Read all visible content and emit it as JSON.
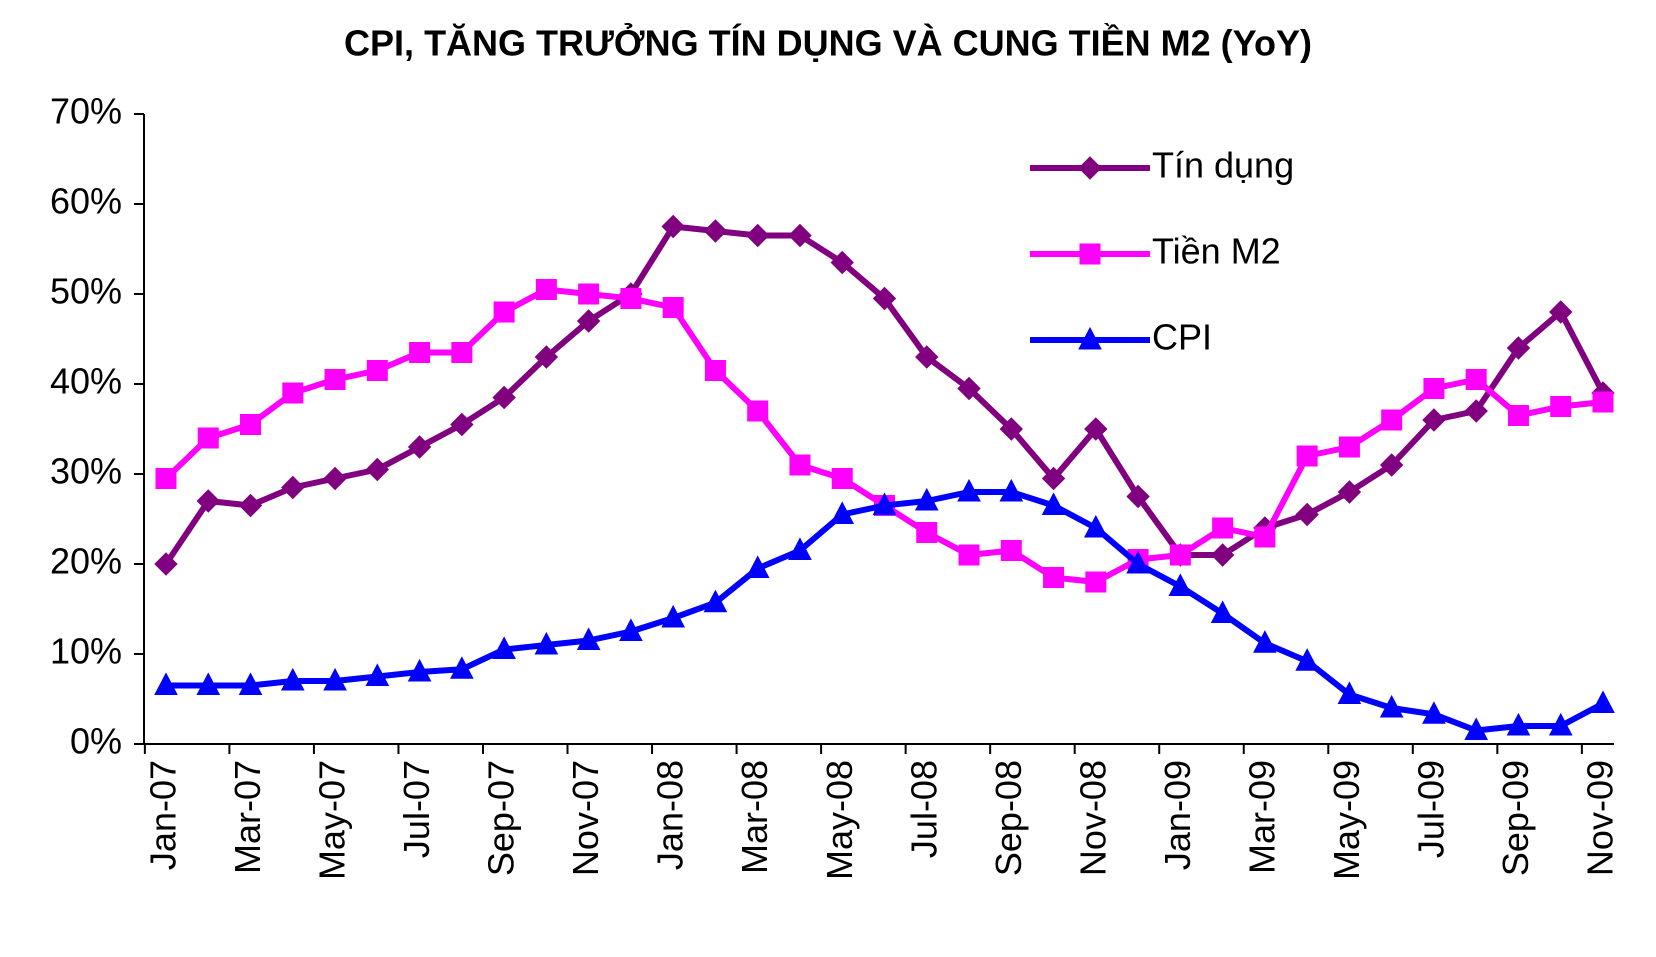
{
  "chart_data": {
    "type": "line",
    "title": "CPI, TĂNG TRƯỞNG TÍN DỤNG VÀ CUNG TIỀN M2 (YoY)",
    "categories": [
      "Jan-07",
      null,
      "Mar-07",
      null,
      "May-07",
      null,
      "Jul-07",
      null,
      "Sep-07",
      null,
      "Nov-07",
      null,
      "Jan-08",
      null,
      "Mar-08",
      null,
      "May-08",
      null,
      "Jul-08",
      null,
      "Sep-08",
      null,
      "Nov-08",
      null,
      "Jan-09",
      null,
      "Mar-09",
      null,
      "May-09",
      null,
      "Jul-09",
      null,
      "Sep-09",
      null,
      "Nov-09"
    ],
    "series": [
      {
        "name": "Tín dụng",
        "color": "#800080",
        "marker": "diamond",
        "values": [
          20,
          27,
          26.5,
          28.5,
          29.5,
          30.5,
          33,
          35.5,
          38.5,
          43,
          47,
          50,
          57.5,
          57,
          56.5,
          56.5,
          53.5,
          49.5,
          43,
          39.5,
          35,
          29.5,
          35,
          27.5,
          21,
          21,
          24,
          25.5,
          28,
          31,
          36,
          37,
          44,
          48,
          39
        ]
      },
      {
        "name": "Tiền M2",
        "color": "#ff00ff",
        "marker": "square",
        "values": [
          29.5,
          34,
          35.5,
          39,
          40.5,
          41.5,
          43.5,
          43.5,
          48,
          50.5,
          50,
          49.5,
          48.5,
          41.5,
          37,
          31,
          29.5,
          26.5,
          23.5,
          21,
          21.5,
          18.5,
          18,
          20.5,
          21,
          24,
          23,
          32,
          33,
          36,
          39.5,
          40.5,
          36.5,
          37.5,
          38
        ]
      },
      {
        "name": "CPI",
        "color": "#0000ff",
        "marker": "triangle",
        "values": [
          6.5,
          6.5,
          6.5,
          7,
          7,
          7.5,
          8,
          8.3,
          10.5,
          11,
          11.5,
          12.5,
          14,
          15.7,
          19.5,
          21.5,
          25.5,
          26.5,
          27,
          28,
          28,
          26.5,
          24,
          20,
          17.5,
          14.5,
          11.2,
          9.2,
          5.5,
          4,
          3.3,
          1.5,
          2,
          2,
          4.5
        ]
      }
    ],
    "ylim": [
      0,
      70
    ],
    "yticks": [
      {
        "value": 0,
        "label": "0%"
      },
      {
        "value": 10,
        "label": "10%"
      },
      {
        "value": 20,
        "label": "20%"
      },
      {
        "value": 30,
        "label": "30%"
      },
      {
        "value": 40,
        "label": "40%"
      },
      {
        "value": 50,
        "label": "50%"
      },
      {
        "value": 60,
        "label": "60%"
      },
      {
        "value": 70,
        "label": "70%"
      }
    ],
    "grid": false,
    "legend": "top-right"
  }
}
